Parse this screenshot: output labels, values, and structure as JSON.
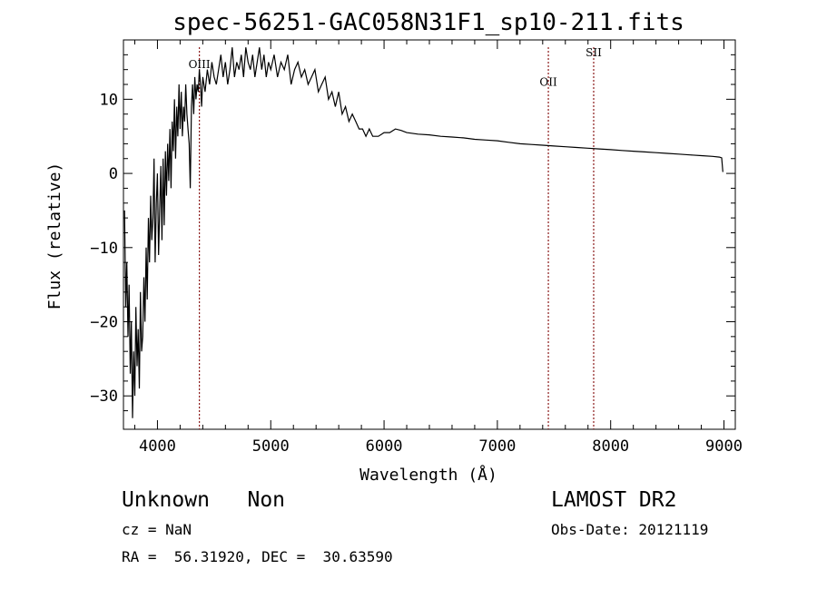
{
  "chart_data": {
    "type": "line",
    "title": "spec-56251-GAC058N31F1_sp10-211.fits",
    "xlabel": "Wavelength (Å)",
    "ylabel": "Flux (relative)",
    "xlim": [
      3700,
      9100
    ],
    "ylim": [
      -34.5,
      18
    ],
    "xticks": [
      4000,
      5000,
      6000,
      7000,
      8000,
      9000
    ],
    "yticks": [
      -30,
      -20,
      -10,
      0,
      10
    ],
    "grid": false,
    "line_color": "#000000",
    "marker_color": "#8b1a1a",
    "spectral_lines": [
      {
        "label": "OIII",
        "wavelength": 4370,
        "label_flux": 14.2
      },
      {
        "label": "OII",
        "wavelength": 7450,
        "label_flux": 11.8
      },
      {
        "label": "SII",
        "wavelength": 7850,
        "label_flux": 15.8
      }
    ],
    "series": [
      {
        "x": [
          3710,
          3720,
          3730,
          3740,
          3750,
          3760,
          3770,
          3780,
          3790,
          3800,
          3810,
          3820,
          3830,
          3840,
          3850,
          3860,
          3870,
          3880,
          3890,
          3900,
          3910,
          3920,
          3930,
          3940,
          3950,
          3960,
          3970,
          3980,
          3990,
          4000,
          4010,
          4020,
          4030,
          4040,
          4050,
          4060,
          4070,
          4080,
          4090,
          4100,
          4110,
          4120,
          4130,
          4140,
          4150,
          4160,
          4170,
          4180,
          4190,
          4200,
          4210,
          4220,
          4230,
          4240,
          4250,
          4260,
          4270,
          4280,
          4290,
          4300,
          4310,
          4320,
          4330,
          4340,
          4350,
          4360,
          4370,
          4380,
          4390,
          4400,
          4420,
          4440,
          4460,
          4480,
          4500,
          4520,
          4540,
          4560,
          4580,
          4600,
          4620,
          4640,
          4660,
          4680,
          4700,
          4720,
          4740,
          4760,
          4780,
          4800,
          4820,
          4840,
          4860,
          4880,
          4900,
          4920,
          4940,
          4960,
          4980,
          5000,
          5030,
          5060,
          5090,
          5120,
          5150,
          5180,
          5210,
          5240,
          5270,
          5300,
          5330,
          5360,
          5390,
          5420,
          5450,
          5480,
          5510,
          5540,
          5570,
          5600,
          5630,
          5660,
          5690,
          5720,
          5750,
          5780,
          5810,
          5840,
          5870,
          5900,
          5950,
          6000,
          6050,
          6100,
          6150,
          6200,
          6300,
          6400,
          6500,
          6600,
          6700,
          6800,
          6900,
          7000,
          7100,
          7200,
          7300,
          7400,
          7500,
          7600,
          7700,
          7800,
          7900,
          8000,
          8100,
          8200,
          8300,
          8400,
          8500,
          8600,
          8700,
          8800,
          8900,
          8960,
          8980,
          8990
        ],
        "y": [
          -5,
          -18,
          -12,
          -22,
          -15,
          -27,
          -20,
          -33,
          -24,
          -30,
          -18,
          -26,
          -21,
          -29,
          -16,
          -24,
          -22,
          -14,
          -20,
          -10,
          -17,
          -6,
          -12,
          -3,
          -9,
          -6,
          2,
          -12,
          -4,
          0,
          -11,
          -5,
          1,
          -9,
          2,
          -7,
          3,
          -3,
          4,
          -1,
          6,
          -2,
          7,
          3,
          10,
          2,
          9,
          5,
          12,
          6,
          11,
          5,
          9,
          7,
          12,
          8,
          6,
          4,
          -2,
          9,
          12,
          8,
          13,
          10,
          12,
          11,
          14,
          12,
          9,
          13,
          11,
          14,
          12,
          15,
          13,
          12,
          14,
          16,
          13,
          15,
          12,
          14,
          17,
          13,
          15,
          14,
          16,
          13,
          17,
          15,
          14,
          16,
          13,
          15,
          17,
          14,
          16,
          13,
          15,
          14,
          16,
          13,
          15,
          14,
          16,
          12,
          14,
          15,
          13,
          14,
          12,
          13,
          14,
          11,
          12,
          13,
          10,
          11,
          9,
          11,
          8,
          9,
          7,
          8,
          7,
          6,
          6,
          5,
          6,
          5,
          5,
          5.5,
          5.5,
          6,
          5.8,
          5.5,
          5.3,
          5.2,
          5,
          4.9,
          4.8,
          4.6,
          4.5,
          4.4,
          4.2,
          4,
          3.9,
          3.8,
          3.7,
          3.6,
          3.5,
          3.4,
          3.3,
          3.2,
          3.1,
          3,
          2.9,
          2.8,
          2.7,
          2.6,
          2.5,
          2.4,
          2.3,
          2.2,
          2.1,
          0.2
        ]
      }
    ]
  },
  "info": {
    "classification": "Unknown   Non",
    "survey": "LAMOST DR2",
    "redshift": "cz = NaN",
    "obs_date": "Obs-Date: 20121119",
    "coords": "RA =  56.31920, DEC =  30.63590"
  }
}
